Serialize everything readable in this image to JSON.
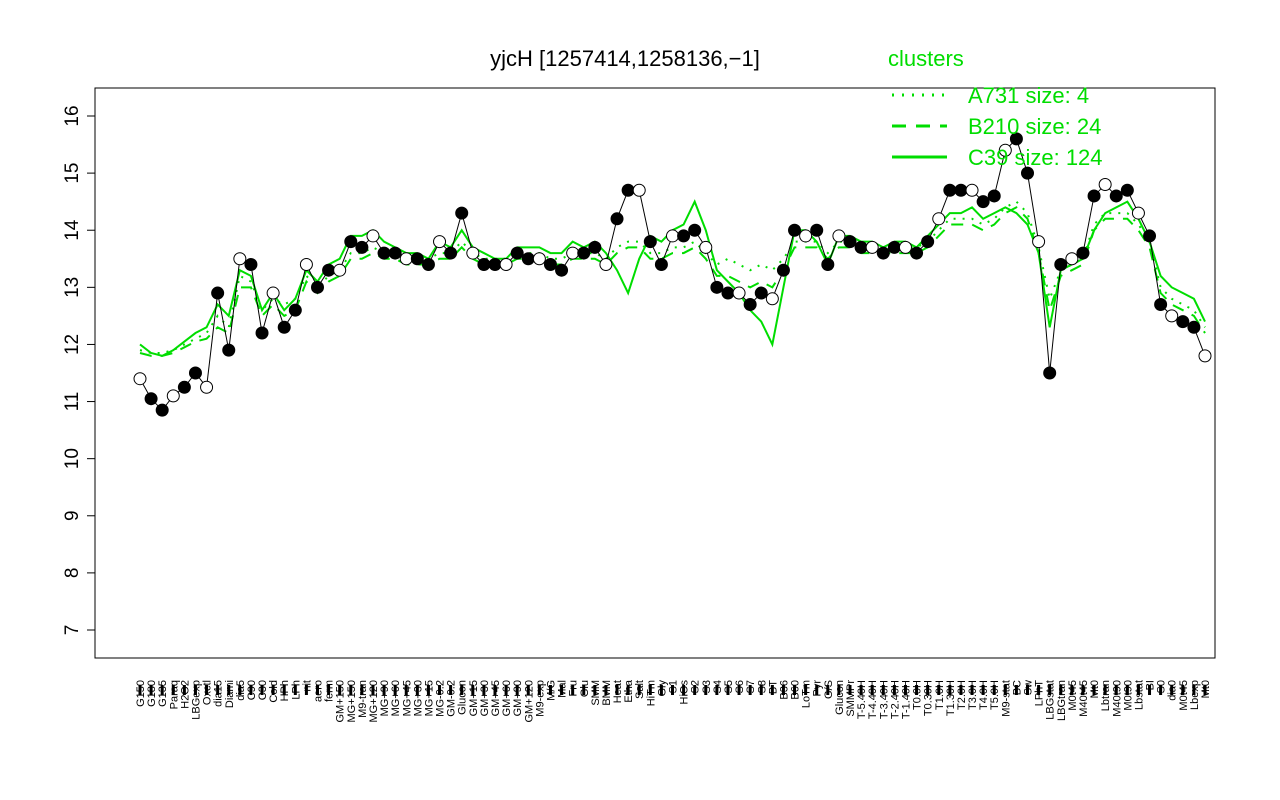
{
  "chart_data": {
    "type": "line",
    "title": "yjcH [1257414,1258136,−1]",
    "xlabel": "",
    "ylabel": "",
    "ylim": [
      7,
      16
    ],
    "yticks": [
      7,
      8,
      9,
      10,
      11,
      12,
      13,
      14,
      15,
      16
    ],
    "grid": false,
    "legend": {
      "title": "clusters",
      "placement": "top-right",
      "color": "#00dd00",
      "entries": [
        {
          "label": "A731 size: 4",
          "style": "dotted"
        },
        {
          "label": "B210 size: 24",
          "style": "dashed"
        },
        {
          "label": "C39 size: 124",
          "style": "solid"
        }
      ]
    },
    "x_tick_labels": [
      "G150",
      "G180",
      "G135",
      "Paraq",
      "H2O2",
      "LBGexp",
      "Oxctl",
      "dia15",
      "Diami",
      "dia5",
      "C90",
      "C30",
      "Cold",
      "HPh",
      "LPh",
      "nit",
      "aero",
      "ferm",
      "GM+150",
      "MG+150",
      "M9-tran",
      "MG+120",
      "MG+90",
      "MG+60",
      "MG+45",
      "MG+30",
      "MG+15",
      "MG-0.2",
      "GM-0.2",
      "Glucon",
      "GM+15",
      "GM+30",
      "GM+45",
      "GM+60",
      "GM+90",
      "GM+120",
      "M9-exp",
      "M/G",
      "Mal",
      "Fru",
      "Glu",
      "SMM",
      "BMM",
      "Heat",
      "Etha",
      "Salt",
      "HiTm",
      "Gly",
      "S1",
      "HiOs",
      "S2",
      "S3",
      "S4",
      "S5",
      "S6",
      "S7",
      "S8",
      "BT",
      "B36",
      "B60",
      "LoTm",
      "Pyr",
      "G/S",
      "Glucon",
      "SMMPr",
      "T-5.40H",
      "T-4.40H",
      "T-3.40H",
      "T-2.40H",
      "T-1.40H",
      "T0.0H",
      "T0.30H",
      "T1.0H",
      "T1.30H",
      "T2.0H",
      "T3.0H",
      "T4.0H",
      "T5.0H",
      "M9-stat",
      "BC",
      "Sw",
      "LPhT",
      "LBGstat",
      "LBGtran",
      "M0t45",
      "M40t45",
      "Mt0",
      "Lbtran",
      "M40t90",
      "M0t90",
      "Lbstat",
      "BI",
      "S0",
      "dia0",
      "M0t45",
      "Lbexp",
      "Mt0"
    ],
    "series": [
      {
        "style": "points",
        "x": [
          1,
          2,
          3,
          4,
          5,
          6,
          7,
          8,
          9,
          10,
          11,
          12,
          13,
          14,
          15,
          16,
          17,
          18,
          19,
          20,
          21,
          22,
          23,
          24,
          25,
          26,
          27,
          28,
          29,
          30,
          31,
          32,
          33,
          34,
          35,
          36,
          37,
          38,
          39,
          40,
          41,
          42,
          43,
          44,
          45,
          46,
          47,
          48,
          49,
          50,
          51,
          52,
          53,
          54,
          55,
          56,
          57,
          58,
          59,
          60,
          61,
          62,
          63,
          64,
          65,
          66,
          67,
          68,
          69,
          70,
          71,
          72,
          73,
          74,
          75,
          76,
          77,
          78,
          79,
          80,
          81,
          82,
          83,
          84,
          85,
          86,
          87,
          88,
          89,
          90,
          91,
          92,
          93,
          94,
          95,
          96,
          97
        ],
        "values": [
          11.4,
          11.05,
          10.85,
          11.1,
          11.25,
          11.5,
          11.25,
          12.9,
          11.9,
          13.5,
          13.4,
          12.2,
          12.9,
          12.3,
          12.6,
          13.4,
          13.0,
          13.3,
          13.3,
          13.8,
          13.7,
          13.9,
          13.6,
          13.6,
          13.5,
          13.5,
          13.4,
          13.8,
          13.6,
          14.3,
          13.6,
          13.4,
          13.4,
          13.4,
          13.6,
          13.5,
          13.5,
          13.4,
          13.3,
          13.6,
          13.6,
          13.7,
          13.4,
          14.2,
          14.7,
          14.7,
          13.8,
          13.4,
          13.9,
          13.9,
          14.0,
          13.7,
          13.0,
          12.9,
          12.9,
          12.7,
          12.9,
          12.8,
          13.3,
          14.0,
          13.9,
          14.0,
          13.4,
          13.9,
          13.8,
          13.7,
          13.7,
          13.6,
          13.7,
          13.7,
          13.6,
          13.8,
          14.2,
          14.7,
          14.7,
          14.7,
          14.5,
          14.6,
          15.4,
          15.6,
          15.0,
          13.8,
          11.5,
          13.4,
          13.5,
          13.6,
          14.6,
          14.8,
          14.6,
          14.7,
          14.3,
          13.9,
          12.7,
          12.5,
          12.4,
          12.3,
          11.8
        ]
      },
      {
        "name": "A731 size: 4",
        "style": "dotted",
        "x": [
          1,
          2,
          3,
          4,
          5,
          6,
          7,
          8,
          9,
          10,
          11,
          12,
          13,
          14,
          15,
          16,
          17,
          18,
          19,
          20,
          21,
          22,
          23,
          24,
          25,
          26,
          27,
          28,
          29,
          30,
          31,
          32,
          33,
          34,
          35,
          36,
          37,
          38,
          39,
          40,
          41,
          42,
          43,
          44,
          45,
          46,
          47,
          48,
          49,
          50,
          51,
          52,
          53,
          54,
          55,
          56,
          57,
          58,
          59,
          60,
          61,
          62,
          63,
          64,
          65,
          66,
          67,
          68,
          69,
          70,
          71,
          72,
          73,
          74,
          75,
          76,
          77,
          78,
          79,
          80,
          81,
          82,
          83,
          84,
          85,
          86,
          87,
          88,
          89,
          90,
          91,
          92,
          93,
          94,
          95,
          96,
          97
        ],
        "values": [
          11.9,
          11.85,
          11.85,
          11.9,
          12.0,
          12.1,
          12.2,
          12.5,
          12.3,
          13.2,
          13.1,
          12.6,
          12.8,
          12.7,
          12.8,
          13.2,
          13.0,
          13.2,
          13.3,
          13.6,
          13.6,
          13.7,
          13.6,
          13.6,
          13.5,
          13.5,
          13.5,
          13.6,
          13.6,
          13.8,
          13.6,
          13.5,
          13.5,
          13.5,
          13.6,
          13.6,
          13.6,
          13.5,
          13.5,
          13.6,
          13.6,
          13.6,
          13.5,
          13.7,
          13.8,
          13.8,
          13.6,
          13.6,
          13.7,
          13.7,
          13.8,
          13.6,
          13.4,
          13.5,
          13.4,
          13.3,
          13.4,
          13.3,
          13.5,
          13.8,
          13.8,
          13.8,
          13.6,
          13.8,
          13.8,
          13.7,
          13.7,
          13.7,
          13.7,
          13.7,
          13.7,
          13.8,
          14.0,
          14.2,
          14.2,
          14.2,
          14.1,
          14.2,
          14.4,
          14.5,
          14.3,
          13.7,
          12.8,
          13.3,
          13.4,
          13.5,
          14.1,
          14.3,
          14.3,
          14.3,
          14.1,
          13.8,
          13.0,
          12.8,
          12.7,
          12.6,
          12.3
        ]
      },
      {
        "name": "B210 size: 24",
        "style": "dashed",
        "x": [
          1,
          2,
          3,
          4,
          5,
          6,
          7,
          8,
          9,
          10,
          11,
          12,
          13,
          14,
          15,
          16,
          17,
          18,
          19,
          20,
          21,
          22,
          23,
          24,
          25,
          26,
          27,
          28,
          29,
          30,
          31,
          32,
          33,
          34,
          35,
          36,
          37,
          38,
          39,
          40,
          41,
          42,
          43,
          44,
          45,
          46,
          47,
          48,
          49,
          50,
          51,
          52,
          53,
          54,
          55,
          56,
          57,
          58,
          59,
          60,
          61,
          62,
          63,
          64,
          65,
          66,
          67,
          68,
          69,
          70,
          71,
          72,
          73,
          74,
          75,
          76,
          77,
          78,
          79,
          80,
          81,
          82,
          83,
          84,
          85,
          86,
          87,
          88,
          89,
          90,
          91,
          92,
          93,
          94,
          95,
          96,
          97
        ],
        "values": [
          11.85,
          11.8,
          11.8,
          11.85,
          11.95,
          12.05,
          12.1,
          12.3,
          12.2,
          13.0,
          13.0,
          12.5,
          12.7,
          12.5,
          12.6,
          13.1,
          12.9,
          13.1,
          13.2,
          13.5,
          13.5,
          13.6,
          13.5,
          13.5,
          13.4,
          13.4,
          13.4,
          13.5,
          13.5,
          13.7,
          13.5,
          13.4,
          13.4,
          13.4,
          13.5,
          13.5,
          13.5,
          13.4,
          13.4,
          13.5,
          13.5,
          13.5,
          13.4,
          13.6,
          13.7,
          13.7,
          13.5,
          13.5,
          13.6,
          13.6,
          13.7,
          13.5,
          13.2,
          13.2,
          13.1,
          13.0,
          13.1,
          13.0,
          13.3,
          13.7,
          13.7,
          13.7,
          13.5,
          13.7,
          13.7,
          13.6,
          13.6,
          13.6,
          13.6,
          13.6,
          13.6,
          13.7,
          13.9,
          14.1,
          14.1,
          14.1,
          14.0,
          14.1,
          14.3,
          14.4,
          14.2,
          13.6,
          12.6,
          13.2,
          13.3,
          13.4,
          14.0,
          14.2,
          14.2,
          14.2,
          14.0,
          13.7,
          12.9,
          12.7,
          12.6,
          12.5,
          12.2
        ]
      },
      {
        "name": "C39 size: 124",
        "style": "solid",
        "x": [
          1,
          2,
          3,
          4,
          5,
          6,
          7,
          8,
          9,
          10,
          11,
          12,
          13,
          14,
          15,
          16,
          17,
          18,
          19,
          20,
          21,
          22,
          23,
          24,
          25,
          26,
          27,
          28,
          29,
          30,
          31,
          32,
          33,
          34,
          35,
          36,
          37,
          38,
          39,
          40,
          41,
          42,
          43,
          44,
          45,
          46,
          47,
          48,
          49,
          50,
          51,
          52,
          53,
          54,
          55,
          56,
          57,
          58,
          59,
          60,
          61,
          62,
          63,
          64,
          65,
          66,
          67,
          68,
          69,
          70,
          71,
          72,
          73,
          74,
          75,
          76,
          77,
          78,
          79,
          80,
          81,
          82,
          83,
          84,
          85,
          86,
          87,
          88,
          89,
          90,
          91,
          92,
          93,
          94,
          95,
          96,
          97
        ],
        "values": [
          12.0,
          11.85,
          11.8,
          11.9,
          12.05,
          12.2,
          12.3,
          12.7,
          12.5,
          13.3,
          13.2,
          12.6,
          12.9,
          12.6,
          12.8,
          13.3,
          13.1,
          13.4,
          13.5,
          13.9,
          13.9,
          14.0,
          13.8,
          13.7,
          13.6,
          13.6,
          13.5,
          13.8,
          13.7,
          14.0,
          13.7,
          13.6,
          13.5,
          13.5,
          13.7,
          13.7,
          13.7,
          13.6,
          13.6,
          13.8,
          13.7,
          13.8,
          13.6,
          13.3,
          12.9,
          13.5,
          13.9,
          13.8,
          14.0,
          14.1,
          14.5,
          14.0,
          13.3,
          13.1,
          12.9,
          12.6,
          12.4,
          12.0,
          13.0,
          14.0,
          14.0,
          13.8,
          13.4,
          13.9,
          13.9,
          13.8,
          13.8,
          13.7,
          13.8,
          13.8,
          13.7,
          13.9,
          14.1,
          14.3,
          14.3,
          14.4,
          14.2,
          14.3,
          14.4,
          14.3,
          14.1,
          13.6,
          12.3,
          13.3,
          13.4,
          13.5,
          14.0,
          14.3,
          14.4,
          14.5,
          14.2,
          13.8,
          13.2,
          13.0,
          12.9,
          12.8,
          12.4
        ]
      }
    ]
  }
}
